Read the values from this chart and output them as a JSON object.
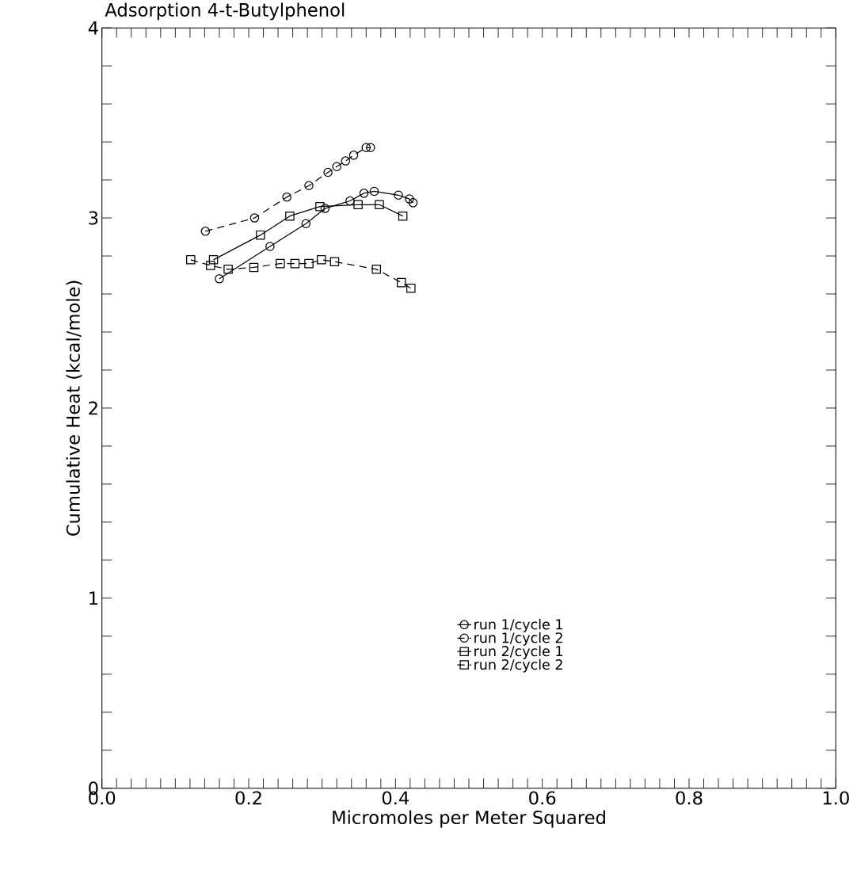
{
  "chart_data": {
    "type": "line",
    "title": "Adsorption 4-t-Butylphenol",
    "xlabel": "Micromoles per Meter Squared",
    "ylabel": "Cumulative Heat (kcal/mole)",
    "xlim": [
      0,
      1
    ],
    "ylim": [
      0,
      4
    ],
    "xticks": [
      {
        "value": 0,
        "label": "0.0"
      },
      {
        "value": 0.02,
        "label": null
      },
      {
        "value": 0.04,
        "label": null
      },
      {
        "value": 0.06,
        "label": null
      },
      {
        "value": 0.08,
        "label": null
      },
      {
        "value": 0.1,
        "label": null
      },
      {
        "value": 0.12,
        "label": null
      },
      {
        "value": 0.14,
        "label": null
      },
      {
        "value": 0.16,
        "label": null
      },
      {
        "value": 0.18,
        "label": null
      },
      {
        "value": 0.2,
        "label": "0.2"
      },
      {
        "value": 0.22,
        "label": null
      },
      {
        "value": 0.24,
        "label": null
      },
      {
        "value": 0.26,
        "label": null
      },
      {
        "value": 0.28,
        "label": null
      },
      {
        "value": 0.3,
        "label": null
      },
      {
        "value": 0.32,
        "label": null
      },
      {
        "value": 0.34,
        "label": null
      },
      {
        "value": 0.36,
        "label": null
      },
      {
        "value": 0.38,
        "label": null
      },
      {
        "value": 0.4,
        "label": "0.4"
      },
      {
        "value": 0.42,
        "label": null
      },
      {
        "value": 0.44,
        "label": null
      },
      {
        "value": 0.46,
        "label": null
      },
      {
        "value": 0.48,
        "label": null
      },
      {
        "value": 0.5,
        "label": null
      },
      {
        "value": 0.52,
        "label": null
      },
      {
        "value": 0.54,
        "label": null
      },
      {
        "value": 0.56,
        "label": null
      },
      {
        "value": 0.58,
        "label": null
      },
      {
        "value": 0.6,
        "label": "0.6"
      },
      {
        "value": 0.62,
        "label": null
      },
      {
        "value": 0.64,
        "label": null
      },
      {
        "value": 0.66,
        "label": null
      },
      {
        "value": 0.68,
        "label": null
      },
      {
        "value": 0.7,
        "label": null
      },
      {
        "value": 0.72,
        "label": null
      },
      {
        "value": 0.74,
        "label": null
      },
      {
        "value": 0.76,
        "label": null
      },
      {
        "value": 0.78,
        "label": null
      },
      {
        "value": 0.8,
        "label": "0.8"
      },
      {
        "value": 0.82,
        "label": null
      },
      {
        "value": 0.84,
        "label": null
      },
      {
        "value": 0.86,
        "label": null
      },
      {
        "value": 0.88,
        "label": null
      },
      {
        "value": 0.9,
        "label": null
      },
      {
        "value": 0.92,
        "label": null
      },
      {
        "value": 0.94,
        "label": null
      },
      {
        "value": 0.96,
        "label": null
      },
      {
        "value": 0.98,
        "label": null
      },
      {
        "value": 1,
        "label": "1.0"
      }
    ],
    "yticks": [
      0,
      {
        "value": 0.2,
        "label": null
      },
      {
        "value": 0.4,
        "label": null
      },
      {
        "value": 0.6,
        "label": null
      },
      {
        "value": 0.8,
        "label": null
      },
      1,
      {
        "value": 1.2,
        "label": null
      },
      {
        "value": 1.4,
        "label": null
      },
      {
        "value": 1.6,
        "label": null
      },
      {
        "value": 1.8,
        "label": null
      },
      2,
      {
        "value": 2.2,
        "label": null
      },
      {
        "value": 2.4,
        "label": null
      },
      {
        "value": 2.6,
        "label": null
      },
      {
        "value": 2.8,
        "label": null
      },
      3,
      {
        "value": 3.2,
        "label": null
      },
      {
        "value": 3.4,
        "label": null
      },
      {
        "value": 3.6,
        "label": null
      },
      {
        "value": 3.8,
        "label": null
      },
      4
    ],
    "legend": "bottom right",
    "grid": false,
    "series": [
      {
        "name": "run 1/cycle 1",
        "color": "#000000",
        "marker": "circle",
        "line_style": "solid",
        "x": [
          0.16,
          0.229,
          0.278,
          0.304,
          0.338,
          0.357,
          0.371,
          0.404,
          0.419,
          0.424
        ],
        "values": [
          2.68,
          2.85,
          2.97,
          3.05,
          3.09,
          3.13,
          3.14,
          3.12,
          3.1,
          3.08
        ]
      },
      {
        "name": "run 1/cycle 2",
        "color": "#000000",
        "marker": "circle",
        "line_style": "dashed",
        "x": [
          0.141,
          0.208,
          0.252,
          0.282,
          0.308,
          0.32,
          0.332,
          0.343,
          0.36,
          0.366
        ],
        "values": [
          2.93,
          3.0,
          3.11,
          3.17,
          3.24,
          3.27,
          3.3,
          3.33,
          3.37,
          3.37
        ]
      },
      {
        "name": "run 2/cycle 1",
        "color": "#000000",
        "marker": "square",
        "line_style": "solid",
        "x": [
          0.152,
          0.216,
          0.256,
          0.297,
          0.349,
          0.378,
          0.41
        ],
        "values": [
          2.78,
          2.91,
          3.01,
          3.06,
          3.07,
          3.07,
          3.01
        ]
      },
      {
        "name": "run 2/cycle 2",
        "color": "#000000",
        "marker": "square",
        "line_style": "dashed",
        "x": [
          0.121,
          0.148,
          0.172,
          0.207,
          0.243,
          0.263,
          0.282,
          0.299,
          0.317,
          0.374,
          0.408,
          0.421
        ],
        "values": [
          2.78,
          2.75,
          2.73,
          2.74,
          2.76,
          2.76,
          2.76,
          2.78,
          2.77,
          2.73,
          2.66,
          2.63
        ]
      }
    ]
  }
}
